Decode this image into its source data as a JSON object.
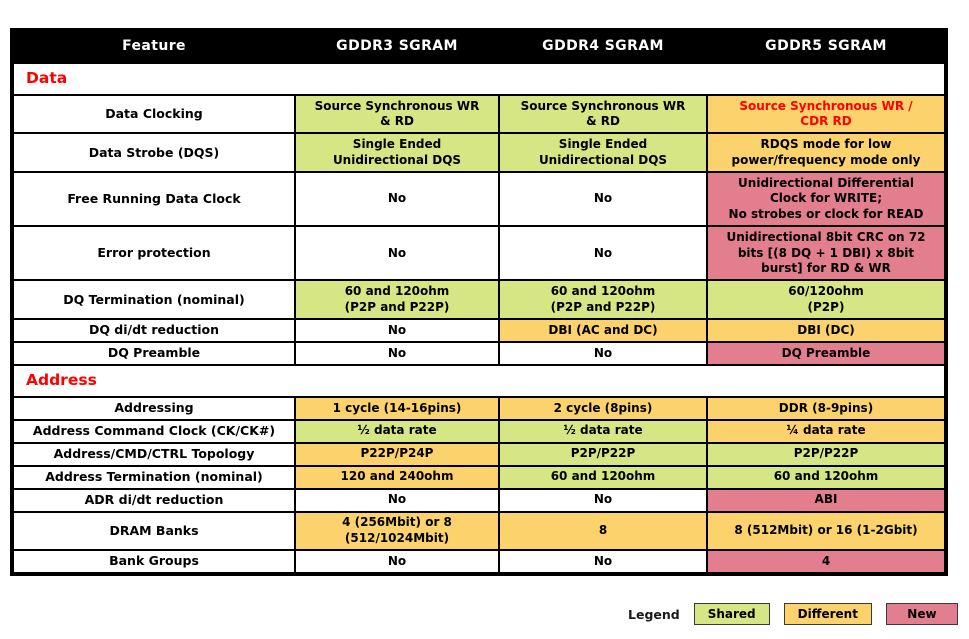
{
  "colors": {
    "shared": "#d6e685",
    "different": "#fbd26b",
    "new": "#e27e8e",
    "header_bg": "#000000",
    "header_text": "#ffffff",
    "section_text": "#ff0000",
    "highlight_text": "#ff0000"
  },
  "header": {
    "columns": [
      "Feature",
      "GDDR3 SGRAM",
      "GDDR4 SGRAM",
      "GDDR5 SGRAM"
    ]
  },
  "sections": [
    {
      "title": "Data",
      "rows": [
        {
          "feature": "Data Clocking",
          "cells": [
            {
              "text": "Source Synchronous WR\n& RD",
              "type": "shared"
            },
            {
              "text": "Source Synchronous WR\n& RD",
              "type": "shared"
            },
            {
              "text": "Source Synchronous WR /\nCDR RD",
              "type": "different",
              "text_color": "#ff0000"
            }
          ]
        },
        {
          "feature": "Data Strobe (DQS)",
          "cells": [
            {
              "text": "Single Ended\nUnidirectional DQS",
              "type": "shared"
            },
            {
              "text": "Single Ended\nUnidirectional DQS",
              "type": "shared"
            },
            {
              "text": "RDQS mode for low\npower/frequency mode only",
              "type": "different"
            }
          ]
        },
        {
          "feature": "Free Running Data Clock",
          "cells": [
            {
              "text": "No",
              "type": "plain"
            },
            {
              "text": "No",
              "type": "plain"
            },
            {
              "text": "Unidirectional Differential\nClock for WRITE;\nNo strobes or clock for READ",
              "type": "new"
            }
          ]
        },
        {
          "feature": "Error protection",
          "cells": [
            {
              "text": "No",
              "type": "plain"
            },
            {
              "text": "No",
              "type": "plain"
            },
            {
              "text": "Unidirectional 8bit CRC on 72\nbits [(8 DQ + 1 DBI) x 8bit\nburst] for RD & WR",
              "type": "new"
            }
          ]
        },
        {
          "feature": "DQ Termination (nominal)",
          "cells": [
            {
              "text": "60 and 120ohm\n(P2P and P22P)",
              "type": "shared"
            },
            {
              "text": "60 and 120ohm\n(P2P and P22P)",
              "type": "shared"
            },
            {
              "text": "60/120ohm\n(P2P)",
              "type": "shared"
            }
          ]
        },
        {
          "feature": "DQ di/dt reduction",
          "cells": [
            {
              "text": "No",
              "type": "plain"
            },
            {
              "text": "DBI (AC and DC)",
              "type": "different"
            },
            {
              "text": "DBI (DC)",
              "type": "different"
            }
          ]
        },
        {
          "feature": "DQ Preamble",
          "cells": [
            {
              "text": "No",
              "type": "plain"
            },
            {
              "text": "No",
              "type": "plain"
            },
            {
              "text": "DQ Preamble",
              "type": "new"
            }
          ]
        }
      ]
    },
    {
      "title": "Address",
      "rows": [
        {
          "feature": "Addressing",
          "cells": [
            {
              "text": "1 cycle (14-16pins)",
              "type": "different"
            },
            {
              "text": "2 cycle (8pins)",
              "type": "different"
            },
            {
              "text": "DDR (8-9pins)",
              "type": "different"
            }
          ]
        },
        {
          "feature": "Address Command Clock (CK/CK#)",
          "cells": [
            {
              "text": "½ data rate",
              "type": "shared"
            },
            {
              "text": "½ data rate",
              "type": "shared"
            },
            {
              "text": "¼ data rate",
              "type": "different"
            }
          ]
        },
        {
          "feature": "Address/CMD/CTRL Topology",
          "cells": [
            {
              "text": "P22P/P24P",
              "type": "different"
            },
            {
              "text": "P2P/P22P",
              "type": "shared"
            },
            {
              "text": "P2P/P22P",
              "type": "shared"
            }
          ]
        },
        {
          "feature": "Address Termination (nominal)",
          "cells": [
            {
              "text": "120 and 240ohm",
              "type": "different"
            },
            {
              "text": "60 and 120ohm",
              "type": "shared"
            },
            {
              "text": "60 and 120ohm",
              "type": "shared"
            }
          ]
        },
        {
          "feature": "ADR di/dt reduction",
          "cells": [
            {
              "text": "No",
              "type": "plain"
            },
            {
              "text": "No",
              "type": "plain"
            },
            {
              "text": "ABI",
              "type": "new"
            }
          ]
        },
        {
          "feature": "DRAM Banks",
          "cells": [
            {
              "text": "4 (256Mbit) or 8\n(512/1024Mbit)",
              "type": "different"
            },
            {
              "text": "8",
              "type": "different"
            },
            {
              "text": "8 (512Mbit) or 16 (1-2Gbit)",
              "type": "different"
            }
          ]
        },
        {
          "feature": "Bank Groups",
          "cells": [
            {
              "text": "No",
              "type": "plain"
            },
            {
              "text": "No",
              "type": "plain"
            },
            {
              "text": "4",
              "type": "new"
            }
          ]
        }
      ]
    }
  ],
  "legend": {
    "label": "Legend",
    "items": [
      {
        "text": "Shared",
        "type": "shared"
      },
      {
        "text": "Different",
        "type": "different"
      },
      {
        "text": "New",
        "type": "new"
      }
    ]
  }
}
